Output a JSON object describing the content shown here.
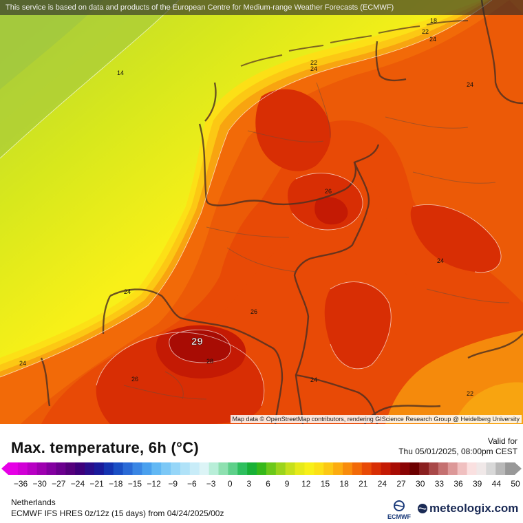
{
  "map": {
    "disclaimer": "This service is based on data and products of the European Centre for Medium-range Weather Forecasts (ECMWF)",
    "attribution": "Map data © OpenStreetMap contributors, rendering GIScience Research Group @ Heidelberg University",
    "max_value_label": "29",
    "contour_labels": [
      "14",
      "18",
      "22",
      "24",
      "22",
      "24",
      "24",
      "26",
      "24",
      "24",
      "26",
      "28",
      "26",
      "24",
      "24",
      "22",
      "24"
    ]
  },
  "header": {
    "title": "Max. temperature, 6h (°C)",
    "valid_label": "Valid for",
    "valid_date": "Thu 05/01/2025, 08:00pm CEST"
  },
  "legend": {
    "ticks": [
      "-36",
      "-30",
      "-27",
      "-24",
      "-21",
      "-18",
      "-15",
      "-12",
      "-9",
      "-6",
      "-3",
      "0",
      "3",
      "6",
      "9",
      "12",
      "15",
      "18",
      "21",
      "24",
      "27",
      "30",
      "33",
      "36",
      "39",
      "44",
      "50"
    ],
    "colors": [
      "#e600e6",
      "#d100d6",
      "#b800c4",
      "#9e00b0",
      "#8300a0",
      "#6b008e",
      "#55007c",
      "#3e007a",
      "#2a0d8a",
      "#1a1a9a",
      "#1433b0",
      "#1a4fc4",
      "#2a6ad6",
      "#3a86e4",
      "#4aa0ee",
      "#62b8f4",
      "#7cc8f6",
      "#96d6f8",
      "#b0e2f8",
      "#c8ecf8",
      "#dcf4f6",
      "#b8eed8",
      "#8ee0b0",
      "#5ed08a",
      "#2ebf5e",
      "#18b036",
      "#36b81a",
      "#6cc81a",
      "#9cd41c",
      "#c6e01c",
      "#e6ea1a",
      "#f8f018",
      "#fce016",
      "#fcc814",
      "#fcac10",
      "#f88c0c",
      "#f26a08",
      "#e84a06",
      "#d82e04",
      "#c41a04",
      "#a80c04",
      "#8a0404",
      "#6c0000",
      "#8a2020",
      "#a84848",
      "#c47070",
      "#dc9898",
      "#f0c0c0",
      "#fae0e0",
      "#f0e8e8",
      "#d8d8d8",
      "#b8b8b8",
      "#989898"
    ]
  },
  "footer": {
    "region": "Netherlands",
    "model": "ECMWF IFS HRES 0z/12z (15 days) from 04/24/2025/00z",
    "ecmwf_logo_text": "ECMWF",
    "brand": "meteologix.com"
  }
}
